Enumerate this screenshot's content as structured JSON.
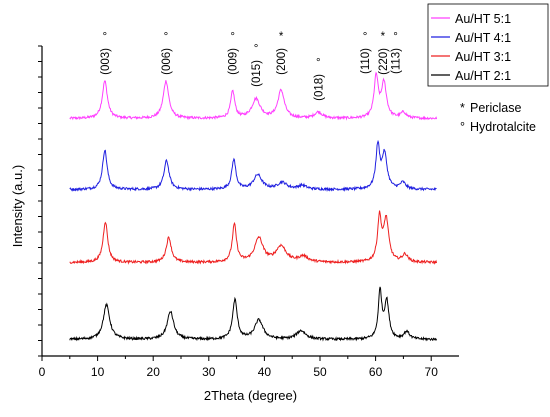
{
  "chart_data": {
    "type": "line",
    "title": "",
    "xlabel": "2Theta (degree)",
    "ylabel": "Intensity (a.u.)",
    "xlim": [
      0,
      75
    ],
    "x_ticks": [
      0,
      10,
      20,
      30,
      40,
      50,
      60,
      70
    ],
    "y_ticks_shown": false,
    "grid": false,
    "legend_position": "top-right",
    "series": [
      {
        "name": "Au/HT 5:1",
        "color": "#ff40ff",
        "offset": 3.0,
        "peaks": [
          [
            11.3,
            0.78,
            0.55
          ],
          [
            22.3,
            0.78,
            0.6
          ],
          [
            34.3,
            0.56,
            0.45
          ],
          [
            38.5,
            0.4,
            0.9
          ],
          [
            43.0,
            0.58,
            0.7
          ],
          [
            49.7,
            0.13,
            0.8
          ],
          [
            60.1,
            0.85,
            0.45
          ],
          [
            61.5,
            0.72,
            0.55
          ],
          [
            65.0,
            0.12,
            0.6
          ]
        ]
      },
      {
        "name": "Au/HT 4:1",
        "color": "#2020e0",
        "offset": 2.0,
        "peaks": [
          [
            11.3,
            0.82,
            0.5
          ],
          [
            22.4,
            0.6,
            0.55
          ],
          [
            34.5,
            0.62,
            0.45
          ],
          [
            38.8,
            0.3,
            0.9
          ],
          [
            43.2,
            0.14,
            1.0
          ],
          [
            46.8,
            0.08,
            0.9
          ],
          [
            60.4,
            0.88,
            0.42
          ],
          [
            61.6,
            0.72,
            0.55
          ],
          [
            64.9,
            0.14,
            0.6
          ]
        ]
      },
      {
        "name": "Au/HT 3:1",
        "color": "#ee2020",
        "offset": 1.0,
        "peaks": [
          [
            11.4,
            0.85,
            0.5
          ],
          [
            22.8,
            0.52,
            0.55
          ],
          [
            34.6,
            0.78,
            0.45
          ],
          [
            39.0,
            0.5,
            0.9
          ],
          [
            43.0,
            0.33,
            1.1
          ],
          [
            47.0,
            0.12,
            1.0
          ],
          [
            60.7,
            0.9,
            0.42
          ],
          [
            61.9,
            0.88,
            0.55
          ],
          [
            65.3,
            0.16,
            0.6
          ]
        ]
      },
      {
        "name": "Au/HT 2:1",
        "color": "#000000",
        "offset": 0.0,
        "peaks": [
          [
            11.6,
            0.72,
            0.7
          ],
          [
            23.1,
            0.58,
            0.7
          ],
          [
            34.7,
            0.82,
            0.5
          ],
          [
            39.0,
            0.4,
            0.9
          ],
          [
            46.6,
            0.18,
            1.0
          ],
          [
            60.8,
            0.98,
            0.38
          ],
          [
            62.0,
            0.78,
            0.48
          ],
          [
            65.6,
            0.16,
            0.6
          ]
        ]
      }
    ],
    "peak_labels": [
      {
        "text": "(003)",
        "x": 11.3,
        "marker": "°"
      },
      {
        "text": "(006)",
        "x": 22.3,
        "marker": "°"
      },
      {
        "text": "(009)",
        "x": 34.3,
        "marker": "°"
      },
      {
        "text": "(015)",
        "x": 38.5,
        "marker": "°"
      },
      {
        "text": "(200)",
        "x": 43.0,
        "marker": "*"
      },
      {
        "text": "(018)",
        "x": 49.7,
        "marker": "°"
      },
      {
        "text": "(110)",
        "x": 58.1,
        "marker": "°"
      },
      {
        "text": "(220)",
        "x": 61.3,
        "marker": "*"
      },
      {
        "text": "(113)",
        "x": 63.6,
        "marker": "°"
      }
    ],
    "marker_notes": [
      {
        "symbol": "*",
        "text": "Periclase"
      },
      {
        "symbol": "°",
        "text": "Hydrotalcite"
      }
    ]
  }
}
